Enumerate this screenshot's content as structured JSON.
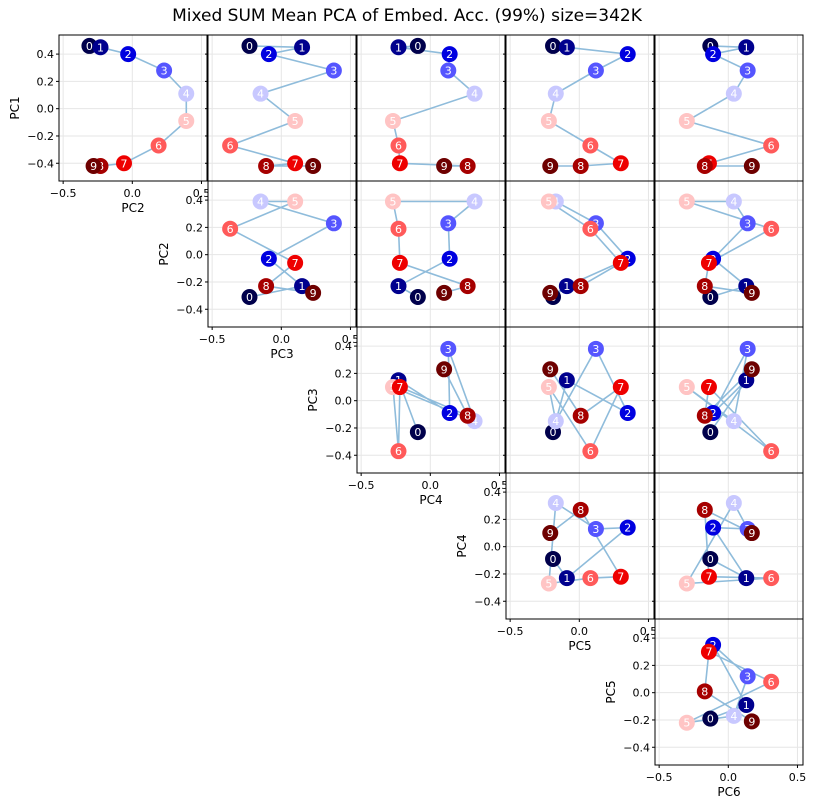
{
  "chart_data": {
    "type": "scatter",
    "title": "Mixed SUM Mean PCA of Embed. Acc. (99%) size=342K",
    "layout": "pairwise upper-triangle",
    "components": [
      "PC1",
      "PC2",
      "PC3",
      "PC4",
      "PC5",
      "PC6"
    ],
    "point_labels": [
      "0",
      "1",
      "2",
      "3",
      "4",
      "5",
      "6",
      "7",
      "8",
      "9"
    ],
    "point_colors": [
      "#00004c",
      "#00008e",
      "#0000e0",
      "#5555ff",
      "#c8c8ff",
      "#ffc4c4",
      "#ff5a5a",
      "#ee0000",
      "#a60000",
      "#6e0000"
    ],
    "line_color": "#8fbcdb",
    "values": {
      "PC1": [
        0.46,
        0.45,
        0.4,
        0.28,
        0.11,
        -0.09,
        -0.27,
        -0.4,
        -0.42,
        -0.42
      ],
      "PC2": [
        -0.31,
        -0.23,
        -0.03,
        0.23,
        0.39,
        0.39,
        0.19,
        -0.06,
        -0.23,
        -0.28
      ],
      "PC3": [
        -0.23,
        0.15,
        -0.09,
        0.38,
        -0.15,
        0.1,
        -0.37,
        0.1,
        -0.11,
        0.23
      ],
      "PC4": [
        -0.09,
        -0.23,
        0.14,
        0.13,
        0.32,
        -0.27,
        -0.23,
        -0.22,
        0.27,
        0.1
      ],
      "PC5": [
        -0.19,
        -0.09,
        0.35,
        0.12,
        -0.17,
        -0.22,
        0.08,
        0.3,
        0.01,
        -0.21
      ],
      "PC6": [
        -0.13,
        0.13,
        -0.11,
        0.14,
        0.04,
        -0.3,
        0.31,
        -0.14,
        -0.17,
        0.17
      ]
    },
    "panels": [
      {
        "row": 0,
        "col": 0,
        "y": "PC1",
        "x": "PC2"
      },
      {
        "row": 0,
        "col": 1,
        "y": "PC1",
        "x": "PC3"
      },
      {
        "row": 0,
        "col": 2,
        "y": "PC1",
        "x": "PC4"
      },
      {
        "row": 0,
        "col": 3,
        "y": "PC1",
        "x": "PC5"
      },
      {
        "row": 0,
        "col": 4,
        "y": "PC1",
        "x": "PC6"
      },
      {
        "row": 1,
        "col": 1,
        "y": "PC2",
        "x": "PC3"
      },
      {
        "row": 1,
        "col": 2,
        "y": "PC2",
        "x": "PC4"
      },
      {
        "row": 1,
        "col": 3,
        "y": "PC2",
        "x": "PC5"
      },
      {
        "row": 1,
        "col": 4,
        "y": "PC2",
        "x": "PC6"
      },
      {
        "row": 2,
        "col": 2,
        "y": "PC3",
        "x": "PC4"
      },
      {
        "row": 2,
        "col": 3,
        "y": "PC3",
        "x": "PC5"
      },
      {
        "row": 2,
        "col": 4,
        "y": "PC3",
        "x": "PC6"
      },
      {
        "row": 3,
        "col": 3,
        "y": "PC4",
        "x": "PC5"
      },
      {
        "row": 3,
        "col": 4,
        "y": "PC4",
        "x": "PC6"
      },
      {
        "row": 4,
        "col": 4,
        "y": "PC5",
        "x": "PC6"
      }
    ],
    "xlim": [
      -0.53,
      0.54
    ],
    "ylim": [
      -0.53,
      0.54
    ],
    "x_ticks": [
      -0.5,
      0.0,
      0.5
    ],
    "x_tick_labels": [
      "−0.5",
      "0.0",
      "0.5"
    ],
    "y_ticks": [
      -0.4,
      -0.2,
      0.0,
      0.2,
      0.4
    ],
    "y_tick_labels": [
      "−0.4",
      "−0.2",
      "0.0",
      "0.2",
      "0.4"
    ],
    "grid": true,
    "legend": "none"
  }
}
